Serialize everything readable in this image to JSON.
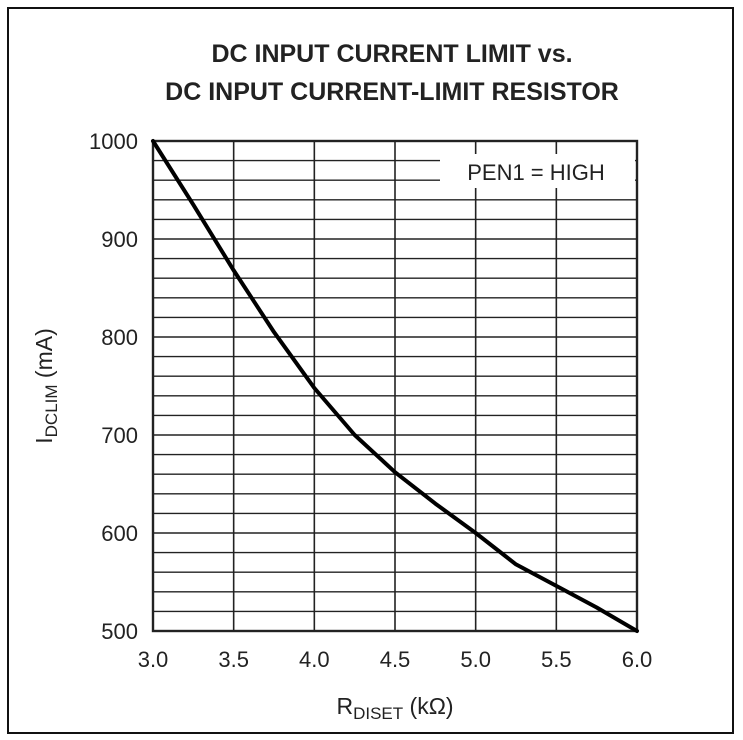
{
  "chart_data": {
    "type": "line",
    "title_line1": "DC INPUT CURRENT LIMIT vs.",
    "title_line2": "DC INPUT CURRENT-LIMIT RESISTOR",
    "xlabel_main": "R",
    "xlabel_sub": "DISET",
    "xlabel_unit": " (kΩ)",
    "ylabel_main": "I",
    "ylabel_sub": "DCLIM",
    "ylabel_unit": " (mA)",
    "xlim": [
      3.0,
      6.0
    ],
    "ylim": [
      500,
      1000
    ],
    "x_ticks": [
      "3.0",
      "3.5",
      "4.0",
      "4.5",
      "5.0",
      "5.5",
      "6.0"
    ],
    "y_ticks": [
      "500",
      "600",
      "700",
      "800",
      "900",
      "1000"
    ],
    "grid": true,
    "annotation": "PEN1 = HIGH",
    "series": [
      {
        "x": [
          3.0,
          3.25,
          3.5,
          3.75,
          4.0,
          4.25,
          4.5,
          4.75,
          5.0,
          5.25,
          5.5,
          5.75,
          6.0
        ],
        "y": [
          1000,
          935,
          868,
          805,
          748,
          700,
          662,
          630,
          600,
          568,
          546,
          524,
          500
        ]
      }
    ]
  },
  "colors": {
    "line": "#000000",
    "grid": "#222222",
    "text": "#222222"
  }
}
